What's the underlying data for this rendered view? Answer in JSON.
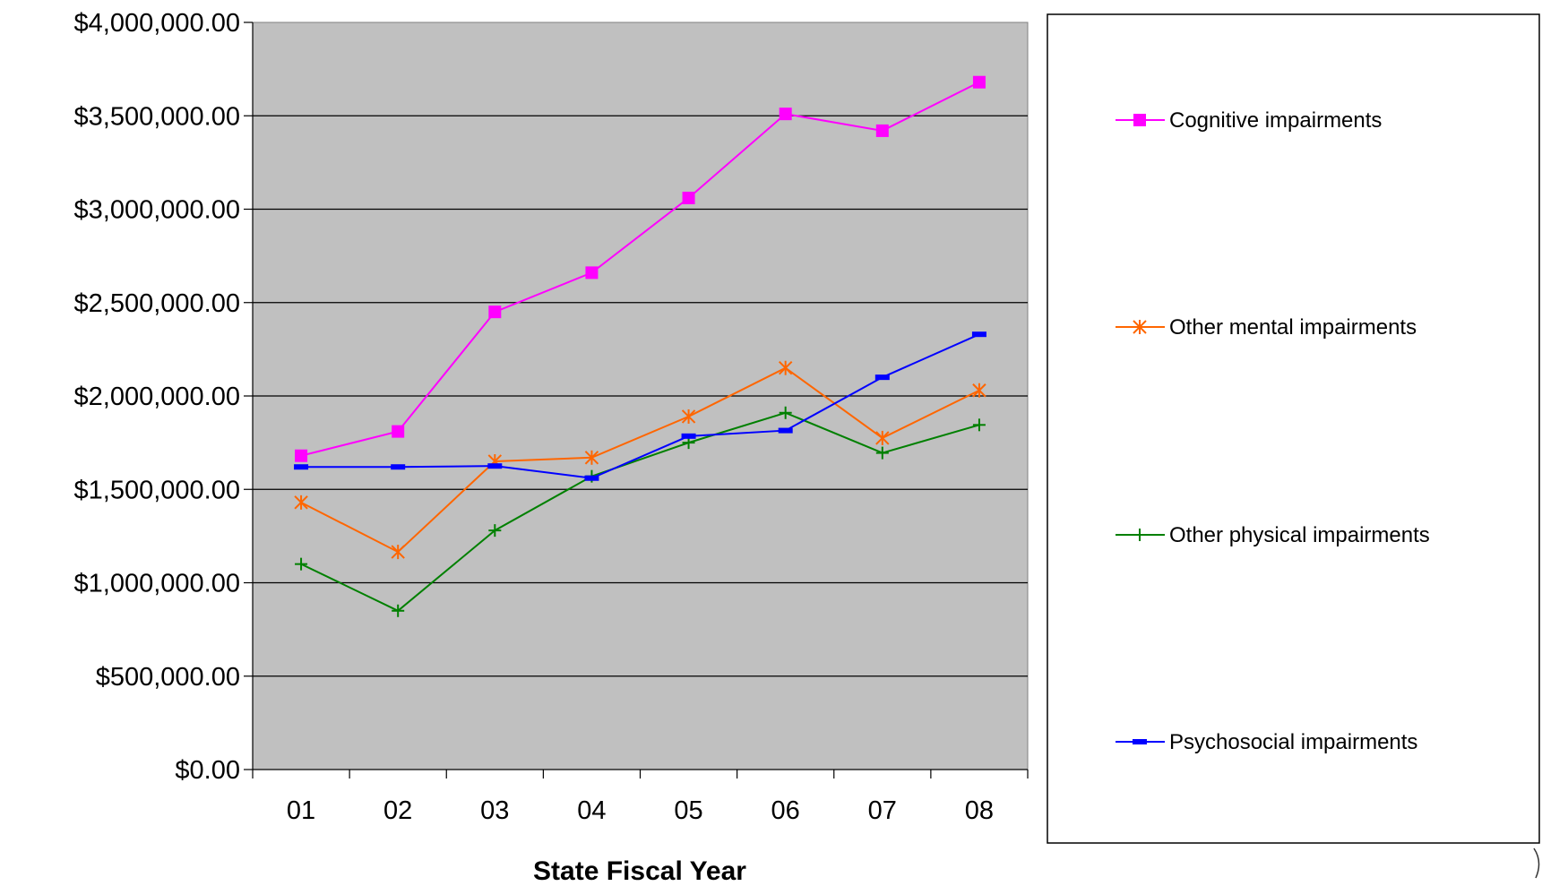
{
  "chart_data": {
    "type": "line",
    "title": "",
    "xlabel": "State Fiscal Year",
    "ylabel": "",
    "categories": [
      "01",
      "02",
      "03",
      "04",
      "05",
      "06",
      "07",
      "08"
    ],
    "ylim": [
      0,
      4000000
    ],
    "yticks": [
      0,
      500000,
      1000000,
      1500000,
      2000000,
      2500000,
      3000000,
      3500000,
      4000000
    ],
    "ytick_labels": [
      "$0.00",
      "$500,000.00",
      "$1,000,000.00",
      "$1,500,000.00",
      "$2,000,000.00",
      "$2,500,000.00",
      "$3,000,000.00",
      "$3,500,000.00",
      "$4,000,000.00"
    ],
    "grid": true,
    "plot_background": "#c0c0c0",
    "legend_position": "right",
    "series": [
      {
        "name": "Cognitive impairments",
        "color": "#ff00ff",
        "marker": "square",
        "values": [
          1680000,
          1810000,
          2450000,
          2660000,
          3060000,
          3510000,
          3420000,
          3680000
        ]
      },
      {
        "name": "Other mental impairments",
        "color": "#ff6600",
        "marker": "asterisk",
        "values": [
          1430000,
          1165000,
          1650000,
          1670000,
          1890000,
          2150000,
          1775000,
          2030000
        ]
      },
      {
        "name": "Other physical impairments",
        "color": "#008000",
        "marker": "plus",
        "values": [
          1100000,
          850000,
          1280000,
          1570000,
          1750000,
          1910000,
          1695000,
          1845000
        ]
      },
      {
        "name": "Psychosocial impairments",
        "color": "#0000ff",
        "marker": "dash",
        "values": [
          1620000,
          1620000,
          1625000,
          1560000,
          1785000,
          1815000,
          2100000,
          2330000
        ]
      }
    ]
  }
}
